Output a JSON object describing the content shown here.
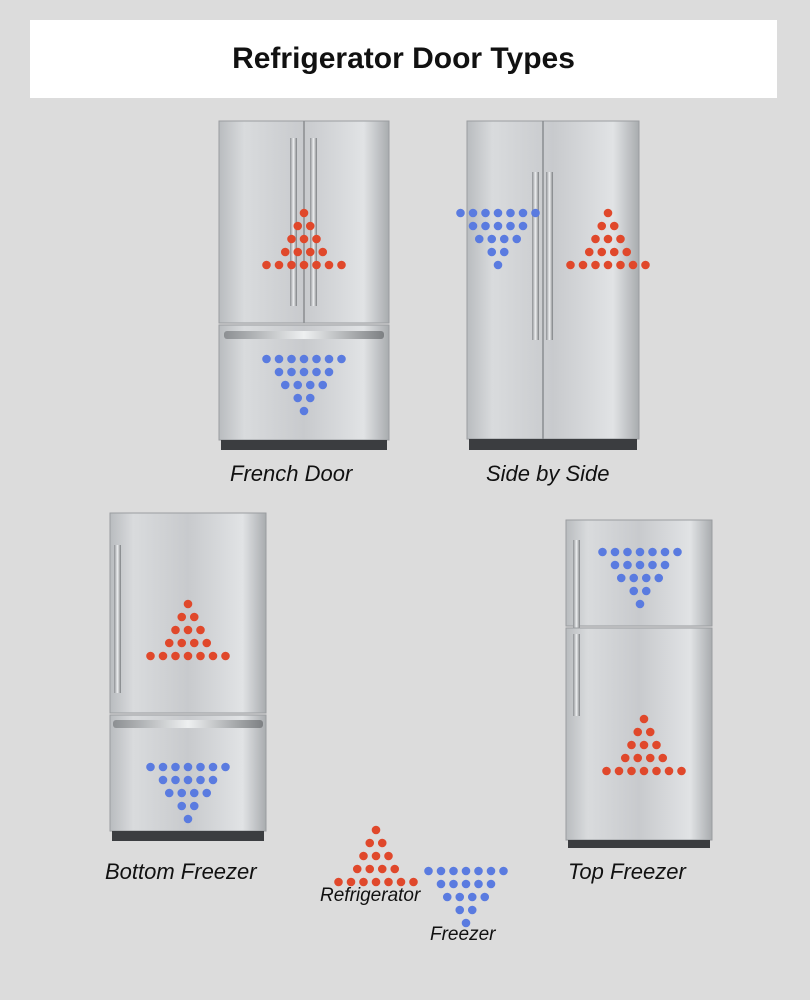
{
  "title": "Refrigerator Door Types",
  "colors": {
    "refrigerator_dot": "#e0482b",
    "freezer_dot": "#5a7be0",
    "background": "#dcdcdc"
  },
  "fridges": [
    {
      "id": "french-door",
      "label": "French Door"
    },
    {
      "id": "side-by-side",
      "label": "Side by Side"
    },
    {
      "id": "bottom-freezer",
      "label": "Bottom Freezer"
    },
    {
      "id": "top-freezer",
      "label": "Top Freezer"
    }
  ],
  "legend": {
    "refrigerator": "Refrigerator",
    "freezer": "Freezer"
  }
}
